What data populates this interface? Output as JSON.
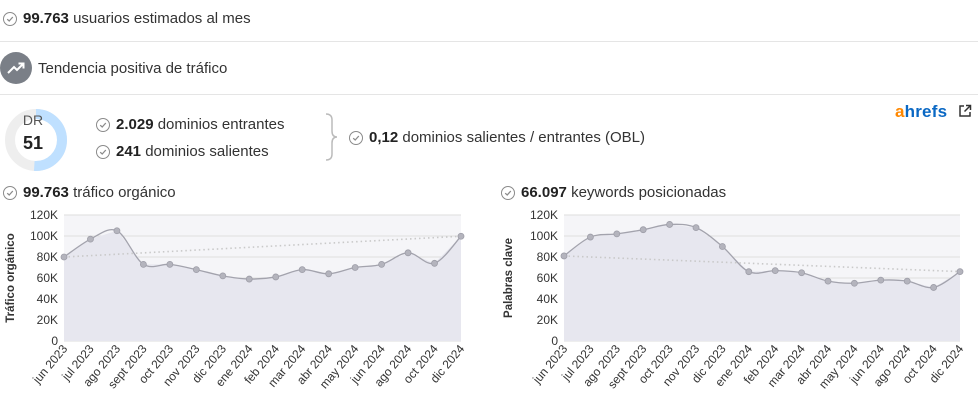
{
  "visitors": {
    "number": "99.763",
    "text": "usuarios estimados al mes"
  },
  "trend": {
    "text": "Tendencia positiva de tráfico"
  },
  "dr": {
    "label": "DR",
    "value": "51",
    "score": 51
  },
  "domains": {
    "entrantes_num": "2.029",
    "entrantes_text": "dominios entrantes",
    "salientes_num": "241",
    "salientes_text": "dominios salientes",
    "obl_num": "0,12",
    "obl_text": "dominios salientes / entrantes (OBL)"
  },
  "brand": {
    "first": "a",
    "rest": "hrefs",
    "accent": "#ff8800",
    "color": "#0a68c4"
  },
  "charts": {
    "traffic": {
      "number": "99.763",
      "text": "tráfico orgánico"
    },
    "keywords": {
      "number": "66.097",
      "text": "keywords posicionadas"
    }
  },
  "chart_data": [
    {
      "type": "area",
      "ylabel": "Tráfico orgánico",
      "ylim": [
        0,
        120000
      ],
      "yticks": [
        "0",
        "20K",
        "40K",
        "60K",
        "80K",
        "100K",
        "120K"
      ],
      "categories": [
        "jun 2023",
        "jul 2023",
        "ago 2023",
        "sept 2023",
        "oct 2023",
        "nov 2023",
        "dic 2023",
        "ene 2024",
        "feb 2024",
        "mar 2024",
        "abr 2024",
        "may 2024",
        "jun 2024",
        "ago 2024",
        "oct 2024",
        "dic 2024"
      ],
      "values": [
        80000,
        97000,
        105000,
        73000,
        73000,
        68000,
        62000,
        59000,
        61000,
        68000,
        64000,
        70000,
        73000,
        84000,
        74000,
        99763
      ],
      "trendline": [
        80000,
        99763
      ],
      "grid": true
    },
    {
      "type": "area",
      "ylabel": "Palabras clave",
      "ylim": [
        0,
        120000
      ],
      "yticks": [
        "0",
        "20K",
        "40K",
        "60K",
        "80K",
        "100K",
        "120K"
      ],
      "categories": [
        "jun 2023",
        "jul 2023",
        "ago 2023",
        "sept 2023",
        "oct 2023",
        "nov 2023",
        "dic 2023",
        "ene 2024",
        "feb 2024",
        "mar 2024",
        "abr 2024",
        "may 2024",
        "jun 2024",
        "ago 2024",
        "oct 2024",
        "dic 2024"
      ],
      "values": [
        81000,
        99000,
        102000,
        106000,
        111000,
        108000,
        90000,
        66000,
        67000,
        65000,
        57000,
        55000,
        58000,
        57000,
        51000,
        66097
      ],
      "trendline": [
        81000,
        66097
      ],
      "grid": true
    }
  ]
}
